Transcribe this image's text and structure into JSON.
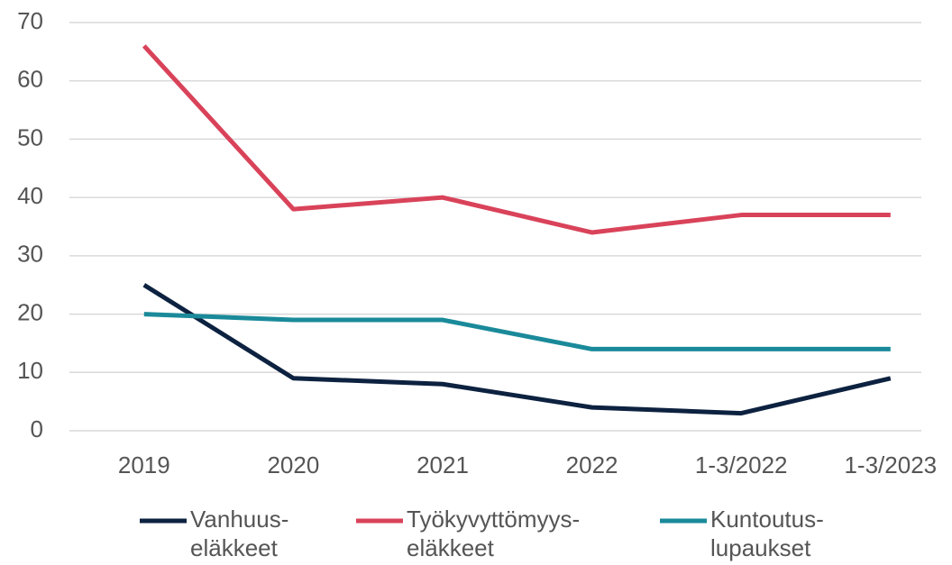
{
  "chart_data": {
    "type": "line",
    "categories": [
      "2019",
      "2020",
      "2021",
      "2022",
      "1-3/2022",
      "1-3/2023"
    ],
    "series": [
      {
        "name": "Vanhuus-\neläkkeet",
        "color": "#0d2240",
        "values": [
          25,
          9,
          8,
          4,
          3,
          9
        ]
      },
      {
        "name": "Työkyvyttömyys-\neläkkeet",
        "color": "#d9435a",
        "values": [
          66,
          38,
          40,
          34,
          37,
          37
        ]
      },
      {
        "name": "Kuntoutus-\nlupaukset",
        "color": "#1a8a9a",
        "values": [
          20,
          19,
          19,
          14,
          14,
          14
        ]
      }
    ],
    "ylim": [
      0,
      70
    ],
    "yticks": [
      0,
      10,
      20,
      30,
      40,
      50,
      60,
      70
    ],
    "grid": true,
    "legend": "bottom"
  }
}
